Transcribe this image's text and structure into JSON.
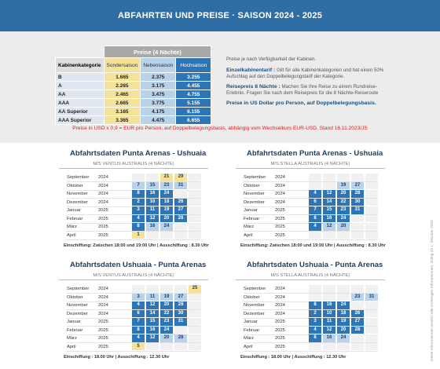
{
  "header": {
    "title": "ABFAHRTEN UND PREISE · SAISON 2024 - 2025"
  },
  "prices": {
    "caption": "Preise (4 Nächte)",
    "corner": "Kabinenkategorie",
    "columns": [
      {
        "label": "Sondersaison",
        "color": "#f5e29a"
      },
      {
        "label": "Nebensaison",
        "color": "#b8d2ea"
      },
      {
        "label": "Hochsaison",
        "color": "#2e75b6"
      }
    ],
    "rows": [
      [
        "B",
        "1.665",
        "2.375",
        "3.255"
      ],
      [
        "A",
        "2.265",
        "3.175",
        "4.455"
      ],
      [
        "AA",
        "2.465",
        "3.475",
        "4.755"
      ],
      [
        "AAA",
        "2.665",
        "3.775",
        "5.155"
      ],
      [
        "AA Superior",
        "3.165",
        "4.175",
        "6.155"
      ],
      [
        "AAA Superior",
        "3.365",
        "4.475",
        "6.655"
      ]
    ]
  },
  "notes": {
    "availability": "Preise je nach Verfügbarkeit der Kabinen.",
    "single_title": "Einzelkabinentarif :",
    "single_text": "Gilt für alle Kabinenkategorien und hat einen 50% Aufschlag auf den Doppelbelegungstarif der Kategorie.",
    "eight_title": "Reisepreis 8 Nächte :",
    "eight_text": "Machen Sie Ihre Reise zu einem Rundreise-Erlebnis. Fragen Sie nach dem Reisepreis für die 8 Nächte-Reiseroute",
    "currency": "Preise in US Dollar pro Person, auf Doppelbelegungsbasis.",
    "exchange": "Preise in USD x 0,9 = EUR pro Person, auf Doppelbelegungsbasis, abhängig vom Wechselkurs EUR-USD. Stand 16.11.2023/JS"
  },
  "side_note": "Diese Informationen ersetzt alle vorherigen Informationen. Gültig ab 1. Oktober 2023.",
  "blocks": [
    {
      "title": "Abfahrtsdaten Punta Arenas - Ushuaia",
      "ship": "M/S VENTUS AUSTRALIS (4 NÄCHTE)",
      "footer": "Einschiffung: Zwischen 18:00 und 19:00 Uhr | Ausschiffung : 8.30 Uhr",
      "rows": [
        {
          "month": "September",
          "year": "2024",
          "days": [
            null,
            null,
            {
              "d": "21",
              "c": "#f5e29a"
            },
            {
              "d": "29",
              "c": "#f5e29a"
            },
            null
          ]
        },
        {
          "month": "Oktober",
          "year": "2024",
          "days": [
            {
              "d": "7",
              "c": "#b8d2ea"
            },
            {
              "d": "15",
              "c": "#b8d2ea"
            },
            {
              "d": "23",
              "c": "#b8d2ea"
            },
            {
              "d": "31",
              "c": "#b8d2ea"
            },
            null
          ]
        },
        {
          "month": "November",
          "year": "2024",
          "days": [
            {
              "d": "8",
              "c": "#2e75b6"
            },
            {
              "d": "16",
              "c": "#2e75b6"
            },
            {
              "d": "24",
              "c": "#2e75b6"
            },
            null,
            null
          ]
        },
        {
          "month": "Dezember",
          "year": "2024",
          "days": [
            {
              "d": "2",
              "c": "#2e75b6"
            },
            {
              "d": "10",
              "c": "#2e75b6"
            },
            {
              "d": "18",
              "c": "#2e75b6"
            },
            {
              "d": "26",
              "c": "#2e75b6"
            },
            null
          ]
        },
        {
          "month": "Januar",
          "year": "2025",
          "days": [
            {
              "d": "3",
              "c": "#2e75b6"
            },
            {
              "d": "11",
              "c": "#2e75b6"
            },
            {
              "d": "19",
              "c": "#2e75b6"
            },
            {
              "d": "27",
              "c": "#2e75b6"
            },
            null
          ]
        },
        {
          "month": "Februar",
          "year": "2025",
          "days": [
            {
              "d": "4",
              "c": "#2e75b6"
            },
            {
              "d": "12",
              "c": "#2e75b6"
            },
            {
              "d": "20",
              "c": "#2e75b6"
            },
            {
              "d": "28",
              "c": "#2e75b6"
            },
            null
          ]
        },
        {
          "month": "März",
          "year": "2025",
          "days": [
            {
              "d": "8",
              "c": "#2e75b6"
            },
            {
              "d": "16",
              "c": "#b8d2ea"
            },
            {
              "d": "24",
              "c": "#b8d2ea"
            },
            null,
            null
          ]
        },
        {
          "month": "April",
          "year": "2025",
          "days": [
            {
              "d": "1",
              "c": "#f5e29a"
            },
            null,
            null,
            null,
            null
          ]
        }
      ]
    },
    {
      "title": "Abfahrtsdaten Punta Arenas - Ushuaia",
      "ship": "M/S STELLA AUSTRALIS (4 NÄCHTE)",
      "footer": "Einschiffung: Zwischen 18:00 und 19:00 Uhr | Ausschiffung : 8.30 Uhr",
      "rows": [
        {
          "month": "September",
          "year": "2024",
          "days": [
            null,
            null,
            null,
            null,
            null
          ]
        },
        {
          "month": "Oktober",
          "year": "2024",
          "days": [
            null,
            null,
            {
              "d": "19",
              "c": "#b8d2ea"
            },
            {
              "d": "27",
              "c": "#b8d2ea"
            },
            null
          ]
        },
        {
          "month": "November",
          "year": "2024",
          "days": [
            {
              "d": "4",
              "c": "#2e75b6"
            },
            {
              "d": "12",
              "c": "#2e75b6"
            },
            {
              "d": "20",
              "c": "#2e75b6"
            },
            {
              "d": "28",
              "c": "#2e75b6"
            },
            null
          ]
        },
        {
          "month": "Dezember",
          "year": "2024",
          "days": [
            {
              "d": "6",
              "c": "#2e75b6"
            },
            {
              "d": "14",
              "c": "#2e75b6"
            },
            {
              "d": "22",
              "c": "#2e75b6"
            },
            {
              "d": "30",
              "c": "#2e75b6"
            },
            null
          ]
        },
        {
          "month": "Januar",
          "year": "2025",
          "days": [
            {
              "d": "7",
              "c": "#2e75b6"
            },
            {
              "d": "15",
              "c": "#2e75b6"
            },
            {
              "d": "23",
              "c": "#2e75b6"
            },
            {
              "d": "31",
              "c": "#2e75b6"
            },
            null
          ]
        },
        {
          "month": "Februar",
          "year": "2025",
          "days": [
            {
              "d": "8",
              "c": "#2e75b6"
            },
            {
              "d": "16",
              "c": "#2e75b6"
            },
            {
              "d": "24",
              "c": "#2e75b6"
            },
            null,
            null
          ]
        },
        {
          "month": "März",
          "year": "2025",
          "days": [
            {
              "d": "4",
              "c": "#2e75b6"
            },
            {
              "d": "12",
              "c": "#b8d2ea"
            },
            {
              "d": "20",
              "c": "#b8d2ea"
            },
            null,
            null
          ]
        },
        {
          "month": "April",
          "year": "2025",
          "days": [
            null,
            null,
            null,
            null,
            null
          ]
        }
      ]
    },
    {
      "title": "Abfahrtsdaten Ushuaia - Punta Arenas",
      "ship": "M/S VENTUS AUSTRALIS (4 NÄCHTE)",
      "footer": "Einschiffung : 18.00 Uhr | Ausschiffung : 12.30 Uhr",
      "rows": [
        {
          "month": "September",
          "year": "2024",
          "days": [
            null,
            null,
            null,
            null,
            {
              "d": "25",
              "c": "#f5e29a"
            }
          ]
        },
        {
          "month": "Oktober",
          "year": "2024",
          "days": [
            {
              "d": "3",
              "c": "#b8d2ea"
            },
            {
              "d": "11",
              "c": "#b8d2ea"
            },
            {
              "d": "19",
              "c": "#b8d2ea"
            },
            {
              "d": "27",
              "c": "#b8d2ea"
            },
            null
          ]
        },
        {
          "month": "November",
          "year": "2024",
          "days": [
            {
              "d": "4",
              "c": "#2e75b6"
            },
            {
              "d": "12",
              "c": "#2e75b6"
            },
            {
              "d": "20",
              "c": "#2e75b6"
            },
            {
              "d": "28",
              "c": "#2e75b6"
            },
            null
          ]
        },
        {
          "month": "Dezember",
          "year": "2024",
          "days": [
            {
              "d": "6",
              "c": "#2e75b6"
            },
            {
              "d": "14",
              "c": "#2e75b6"
            },
            {
              "d": "22",
              "c": "#2e75b6"
            },
            {
              "d": "30",
              "c": "#2e75b6"
            },
            null
          ]
        },
        {
          "month": "Januar",
          "year": "2025",
          "days": [
            {
              "d": "7",
              "c": "#2e75b6"
            },
            {
              "d": "15",
              "c": "#2e75b6"
            },
            {
              "d": "23",
              "c": "#2e75b6"
            },
            {
              "d": "31",
              "c": "#2e75b6"
            },
            null
          ]
        },
        {
          "month": "Februar",
          "year": "2025",
          "days": [
            {
              "d": "8",
              "c": "#2e75b6"
            },
            {
              "d": "16",
              "c": "#2e75b6"
            },
            {
              "d": "24",
              "c": "#2e75b6"
            },
            null,
            null
          ]
        },
        {
          "month": "März",
          "year": "2025",
          "days": [
            {
              "d": "4",
              "c": "#2e75b6"
            },
            {
              "d": "12",
              "c": "#2e75b6"
            },
            {
              "d": "20",
              "c": "#b8d2ea"
            },
            {
              "d": "28",
              "c": "#b8d2ea"
            },
            null
          ]
        },
        {
          "month": "April",
          "year": "2025",
          "days": [
            {
              "d": "5",
              "c": "#f5e29a"
            },
            null,
            null,
            null,
            null
          ]
        }
      ]
    },
    {
      "title": "Abfahrtsdaten Ushuaia - Punta Arenas",
      "ship": "M/S STELLA AUSTRALIS (4 NÄCHTE)",
      "footer": "Einschiffung : 18.00 Uhr | Ausschiffung : 12.30 Uhr",
      "rows": [
        {
          "month": "September",
          "year": "2024",
          "days": [
            null,
            null,
            null,
            null,
            null
          ]
        },
        {
          "month": "Oktober",
          "year": "2024",
          "days": [
            null,
            null,
            null,
            {
              "d": "23",
              "c": "#b8d2ea"
            },
            {
              "d": "31",
              "c": "#b8d2ea"
            }
          ]
        },
        {
          "month": "November",
          "year": "2024",
          "days": [
            {
              "d": "8",
              "c": "#2e75b6"
            },
            {
              "d": "16",
              "c": "#2e75b6"
            },
            {
              "d": "24",
              "c": "#2e75b6"
            },
            null,
            null
          ]
        },
        {
          "month": "Dezember",
          "year": "2024",
          "days": [
            {
              "d": "2",
              "c": "#2e75b6"
            },
            {
              "d": "10",
              "c": "#2e75b6"
            },
            {
              "d": "18",
              "c": "#2e75b6"
            },
            {
              "d": "26",
              "c": "#2e75b6"
            },
            null
          ]
        },
        {
          "month": "Januar",
          "year": "2025",
          "days": [
            {
              "d": "3",
              "c": "#2e75b6"
            },
            {
              "d": "11",
              "c": "#2e75b6"
            },
            {
              "d": "19",
              "c": "#2e75b6"
            },
            {
              "d": "27",
              "c": "#2e75b6"
            },
            null
          ]
        },
        {
          "month": "Februar",
          "year": "2025",
          "days": [
            {
              "d": "4",
              "c": "#2e75b6"
            },
            {
              "d": "12",
              "c": "#2e75b6"
            },
            {
              "d": "20",
              "c": "#2e75b6"
            },
            {
              "d": "28",
              "c": "#2e75b6"
            },
            null
          ]
        },
        {
          "month": "März",
          "year": "2025",
          "days": [
            {
              "d": "8",
              "c": "#2e75b6"
            },
            {
              "d": "16",
              "c": "#b8d2ea"
            },
            {
              "d": "24",
              "c": "#b8d2ea"
            },
            null,
            null
          ]
        },
        {
          "month": "April",
          "year": "2025",
          "days": [
            null,
            null,
            null,
            null,
            null
          ]
        }
      ]
    }
  ]
}
